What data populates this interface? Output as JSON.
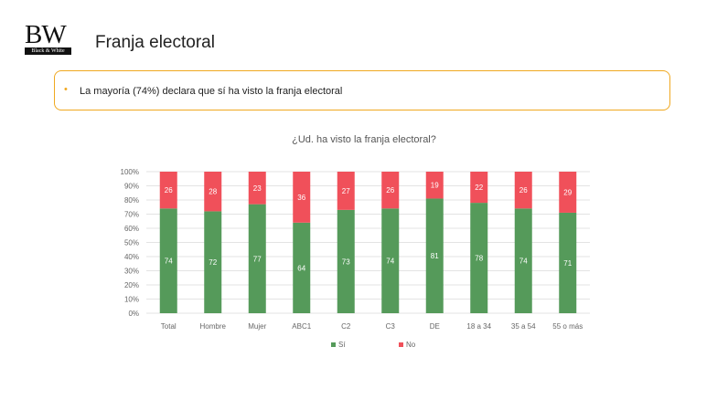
{
  "header": {
    "logo_letters": "BW",
    "logo_sub": "Black & White",
    "title": "Franja electoral"
  },
  "highlight": {
    "bullet": "•",
    "text": "La mayoría (74%) declara que sí ha visto la franja electoral"
  },
  "colors": {
    "si": "#559a5a",
    "no": "#f0505a",
    "accent": "#f0a820"
  },
  "chart_data": {
    "type": "bar",
    "stacked": true,
    "title": "¿Ud. ha visto la franja electoral?",
    "categories": [
      "Total",
      "Hombre",
      "Mujer",
      "ABC1",
      "C2",
      "C3",
      "DE",
      "18 a 34",
      "35 a 54",
      "55 o más"
    ],
    "series": [
      {
        "name": "Sí",
        "values": [
          74,
          72,
          77,
          64,
          73,
          74,
          81,
          78,
          74,
          71
        ]
      },
      {
        "name": "No",
        "values": [
          26,
          28,
          23,
          36,
          27,
          26,
          19,
          22,
          26,
          29
        ]
      }
    ],
    "ylim": [
      0,
      100
    ],
    "yticks": [
      "0%",
      "10%",
      "20%",
      "30%",
      "40%",
      "50%",
      "60%",
      "70%",
      "80%",
      "90%",
      "100%"
    ],
    "grid": true,
    "legend_position": "bottom"
  }
}
